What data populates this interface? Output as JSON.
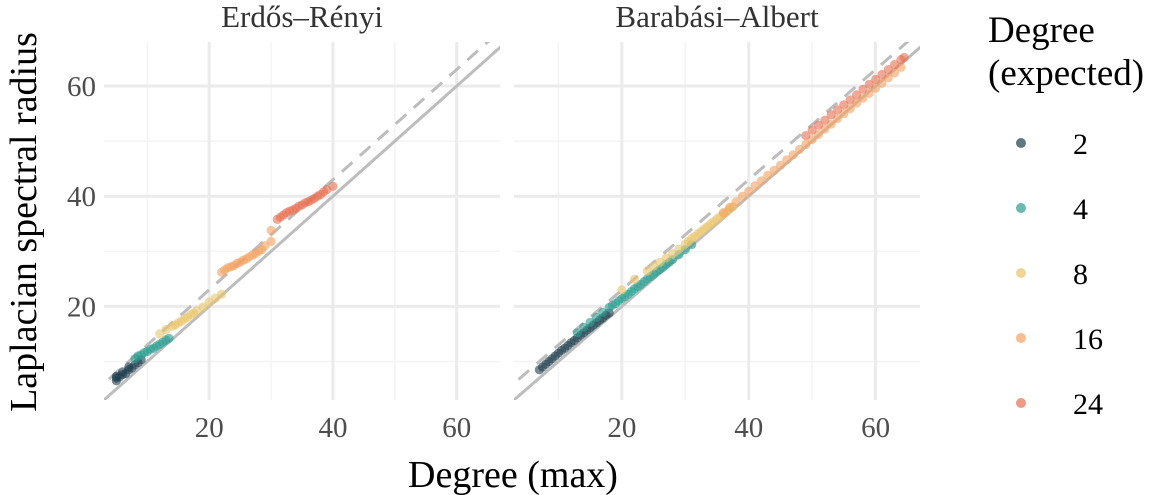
{
  "chart_data": {
    "type": "scatter",
    "xlabel": "Degree (max)",
    "ylabel": "Laplacian spectral radius",
    "xlim": [
      3,
      67
    ],
    "ylim": [
      3,
      68
    ],
    "x_ticks": [
      20,
      40,
      60
    ],
    "x_tick_labels": [
      "20",
      "40",
      "60"
    ],
    "y_ticks": [
      20,
      40,
      60
    ],
    "y_tick_labels": [
      "20",
      "40",
      "60"
    ],
    "grid": true,
    "reference_lines": [
      {
        "style": "solid",
        "intercept": 0,
        "slope": 1
      },
      {
        "style": "dashed",
        "intercept": 3,
        "slope": 1
      }
    ],
    "legend": {
      "title_lines": [
        "Degree",
        "(expected)"
      ],
      "placement": "right",
      "entries": [
        {
          "label": "2",
          "color": "#1e3d4c"
        },
        {
          "label": "4",
          "color": "#2a9d8f"
        },
        {
          "label": "8",
          "color": "#e9c46a"
        },
        {
          "label": "16",
          "color": "#f4a261"
        },
        {
          "label": "24",
          "color": "#e76f51"
        }
      ]
    },
    "panels": [
      {
        "title": "Erdős–Rényi",
        "series": [
          {
            "name": "2",
            "points": [
              [
                5,
                6.5
              ],
              [
                5,
                7
              ],
              [
                5,
                7.3
              ],
              [
                5.5,
                7.2
              ],
              [
                6,
                7.6
              ],
              [
                6,
                8.1
              ],
              [
                6.5,
                7.8
              ],
              [
                7,
                8.5
              ],
              [
                7,
                9
              ],
              [
                7.5,
                8.8
              ],
              [
                8,
                9.4
              ],
              [
                8.5,
                9.8
              ],
              [
                9,
                10.3
              ]
            ]
          },
          {
            "name": "4",
            "points": [
              [
                8,
                10.5
              ],
              [
                8.5,
                11
              ],
              [
                9,
                11.2
              ],
              [
                9.5,
                11.6
              ],
              [
                10,
                11.8
              ],
              [
                10.5,
                12.2
              ],
              [
                11,
                12.4
              ],
              [
                11.5,
                12.8
              ],
              [
                12,
                13.1
              ],
              [
                12.5,
                13.5
              ],
              [
                13,
                13.9
              ],
              [
                13.5,
                14.2
              ]
            ]
          },
          {
            "name": "8",
            "points": [
              [
                12,
                15
              ],
              [
                13,
                15.8
              ],
              [
                14,
                16.4
              ],
              [
                14.5,
                16.6
              ],
              [
                15,
                17
              ],
              [
                15.5,
                17.3
              ],
              [
                16,
                17.8
              ],
              [
                16.5,
                18
              ],
              [
                17,
                18.5
              ],
              [
                17.5,
                18.8
              ],
              [
                18,
                19.2
              ],
              [
                19,
                19.9
              ],
              [
                20,
                20.8
              ],
              [
                21,
                21.5
              ],
              [
                22,
                22.2
              ]
            ]
          },
          {
            "name": "16",
            "points": [
              [
                22,
                26.2
              ],
              [
                22.5,
                26.6
              ],
              [
                23,
                27
              ],
              [
                23.5,
                27.2
              ],
              [
                24,
                27.4
              ],
              [
                24.5,
                27.8
              ],
              [
                25,
                28
              ],
              [
                25.5,
                28.4
              ],
              [
                26,
                28.6
              ],
              [
                26.5,
                29
              ],
              [
                27,
                29.3
              ],
              [
                27.5,
                29.6
              ],
              [
                28,
                30
              ],
              [
                28.5,
                30.3
              ],
              [
                29,
                31
              ],
              [
                30,
                31.8
              ],
              [
                30,
                33.8
              ]
            ]
          },
          {
            "name": "24",
            "points": [
              [
                31,
                35.8
              ],
              [
                31.5,
                36.2
              ],
              [
                32,
                36.6
              ],
              [
                32.5,
                37
              ],
              [
                33,
                37.3
              ],
              [
                33.5,
                37.5
              ],
              [
                34,
                37.8
              ],
              [
                34.5,
                38.2
              ],
              [
                35,
                38.4
              ],
              [
                35.5,
                38.8
              ],
              [
                36,
                39
              ],
              [
                36.5,
                39.3
              ],
              [
                37,
                39.6
              ],
              [
                37.5,
                40
              ],
              [
                38,
                40.3
              ],
              [
                38.5,
                40.8
              ],
              [
                39,
                41.2
              ],
              [
                40,
                41.8
              ]
            ]
          }
        ]
      },
      {
        "title": "Barabási–Albert",
        "series": [
          {
            "name": "2",
            "points": [
              [
                7,
                8.5
              ],
              [
                7.5,
                9
              ],
              [
                8,
                9.5
              ],
              [
                8.5,
                10
              ],
              [
                9,
                10.5
              ],
              [
                9.5,
                11
              ],
              [
                10,
                11.5
              ],
              [
                10.5,
                12
              ],
              [
                11,
                12.4
              ],
              [
                11.5,
                12.9
              ],
              [
                12,
                13.4
              ],
              [
                12.5,
                13.8
              ],
              [
                13,
                14.3
              ],
              [
                13.5,
                14.8
              ],
              [
                14,
                15.2
              ],
              [
                14.5,
                15.7
              ],
              [
                15,
                16.1
              ],
              [
                15.5,
                16.6
              ],
              [
                16,
                17
              ],
              [
                16.5,
                17.5
              ],
              [
                17,
                17.9
              ],
              [
                17.5,
                18.4
              ],
              [
                18,
                18.8
              ]
            ]
          },
          {
            "name": "4",
            "points": [
              [
                13,
                15.2
              ],
              [
                14,
                16.2
              ],
              [
                15,
                17.1
              ],
              [
                16,
                18
              ],
              [
                17,
                18.9
              ],
              [
                18,
                19.8
              ],
              [
                18.5,
                20.2
              ],
              [
                19,
                20.5
              ],
              [
                19.5,
                21
              ],
              [
                20,
                21.4
              ],
              [
                20.5,
                21.8
              ],
              [
                21,
                22.2
              ],
              [
                21.5,
                22.7
              ],
              [
                22,
                23.2
              ],
              [
                22.5,
                23.6
              ],
              [
                23,
                24
              ],
              [
                23.5,
                24.5
              ],
              [
                24,
                25
              ],
              [
                24.5,
                25.4
              ],
              [
                25,
                25.8
              ],
              [
                25.5,
                26.3
              ],
              [
                26,
                26.7
              ],
              [
                26.5,
                27.1
              ],
              [
                27,
                27.6
              ],
              [
                27.5,
                28
              ],
              [
                28,
                28.5
              ],
              [
                29,
                29.4
              ],
              [
                30,
                30.3
              ],
              [
                31,
                31.2
              ]
            ]
          },
          {
            "name": "8",
            "points": [
              [
                20,
                23
              ],
              [
                22,
                24.9
              ],
              [
                24,
                26.4
              ],
              [
                25,
                27.3
              ],
              [
                26,
                28
              ],
              [
                27,
                28.8
              ],
              [
                28,
                29.6
              ],
              [
                29,
                30.4
              ],
              [
                30,
                31.3
              ],
              [
                30.5,
                31.8
              ],
              [
                31,
                32.3
              ],
              [
                31.5,
                32.7
              ],
              [
                32,
                33.2
              ],
              [
                32.5,
                33.6
              ],
              [
                33,
                34.1
              ],
              [
                33.5,
                34.5
              ],
              [
                34,
                35
              ],
              [
                34.5,
                35.4
              ],
              [
                35,
                35.9
              ],
              [
                35.5,
                36.3
              ],
              [
                36,
                36.8
              ],
              [
                36.5,
                37.2
              ],
              [
                37,
                37.7
              ],
              [
                37.5,
                38.1
              ]
            ]
          },
          {
            "name": "16",
            "points": [
              [
                36,
                37
              ],
              [
                37,
                38
              ],
              [
                38,
                39
              ],
              [
                39,
                40
              ],
              [
                40,
                40.9
              ],
              [
                41,
                41.9
              ],
              [
                42,
                42.8
              ],
              [
                43,
                43.8
              ],
              [
                44,
                44.7
              ],
              [
                45,
                45.6
              ],
              [
                46,
                46.6
              ],
              [
                47,
                47.5
              ],
              [
                48,
                48.5
              ],
              [
                49,
                49.4
              ],
              [
                50,
                50.3
              ],
              [
                51,
                51.2
              ],
              [
                52,
                52.2
              ],
              [
                53,
                53.1
              ],
              [
                54,
                54.1
              ],
              [
                55,
                55
              ],
              [
                56,
                55.9
              ],
              [
                57,
                56.9
              ],
              [
                58,
                57.8
              ],
              [
                59,
                58.7
              ],
              [
                60,
                59.6
              ],
              [
                61,
                60.5
              ],
              [
                62,
                61.5
              ],
              [
                63,
                62.4
              ],
              [
                64,
                63.4
              ]
            ]
          },
          {
            "name": "24",
            "points": [
              [
                49,
                51
              ],
              [
                50,
                52
              ],
              [
                51,
                52.9
              ],
              [
                52,
                53.8
              ],
              [
                53,
                54.8
              ],
              [
                54,
                55.7
              ],
              [
                55,
                56.6
              ],
              [
                56,
                57.5
              ],
              [
                57,
                58.4
              ],
              [
                58,
                59.4
              ],
              [
                59,
                60.3
              ],
              [
                60,
                61.2
              ],
              [
                61,
                62.1
              ],
              [
                62,
                63
              ],
              [
                63,
                63.9
              ],
              [
                64,
                64.8
              ],
              [
                64.5,
                65.2
              ]
            ]
          }
        ]
      }
    ]
  }
}
